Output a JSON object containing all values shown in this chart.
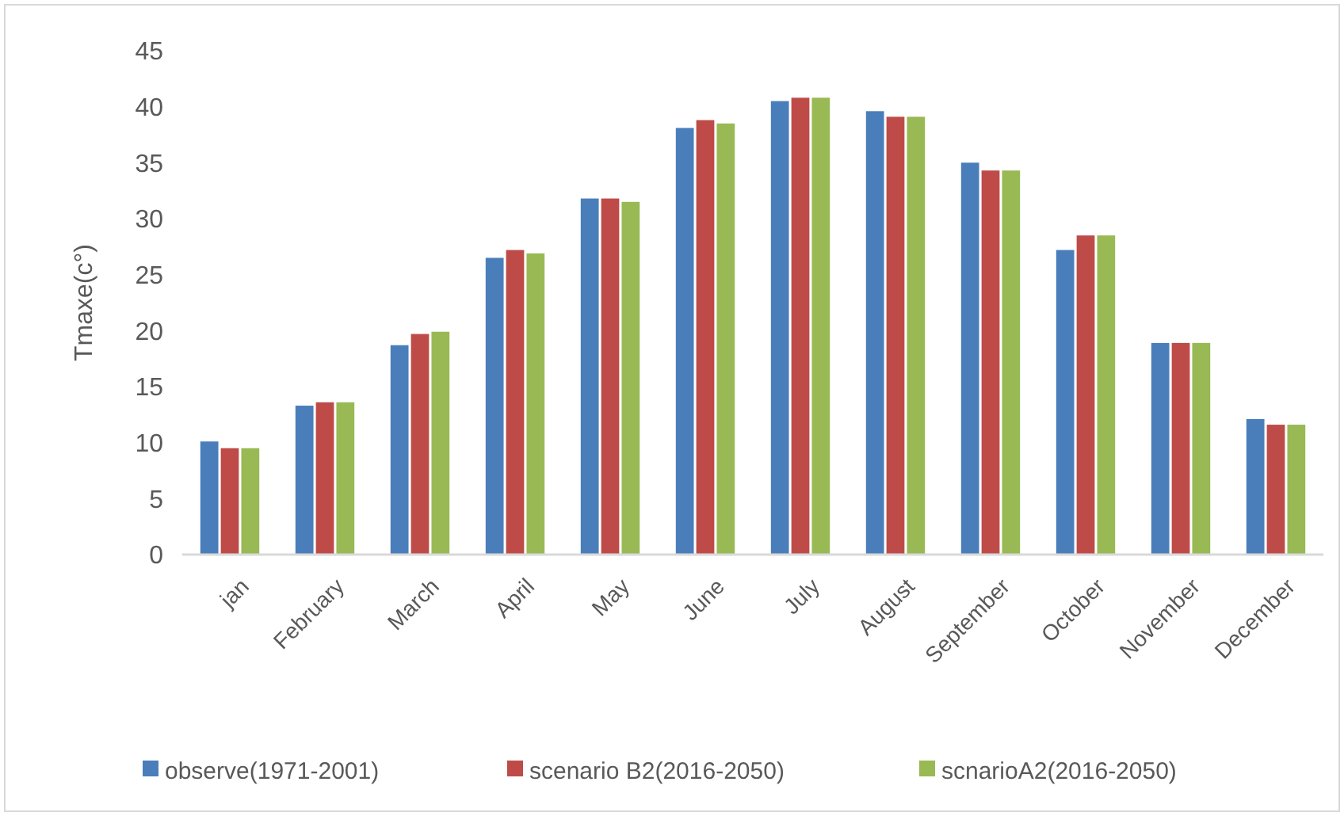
{
  "chart_data": {
    "type": "bar",
    "ylabel": "Tmaxe(c°)",
    "categories": [
      "jan",
      "February",
      "March",
      "April",
      "May",
      "June",
      "July",
      "August",
      "September",
      "October",
      "November",
      "December"
    ],
    "series": [
      {
        "name": "observe(1971-2001)",
        "color": "#4a7ebb",
        "values": [
          10.1,
          13.3,
          18.7,
          26.5,
          31.8,
          38.1,
          40.5,
          39.6,
          35.0,
          27.2,
          18.9,
          12.1
        ]
      },
      {
        "name": "scenario B2(2016-2050)",
        "color": "#be4b48",
        "values": [
          9.5,
          13.6,
          19.7,
          27.2,
          31.8,
          38.8,
          40.8,
          39.1,
          34.3,
          28.5,
          18.9,
          11.6
        ]
      },
      {
        "name": "scnarioA2(2016-2050)",
        "color": "#98b954",
        "values": [
          9.5,
          13.6,
          19.9,
          26.9,
          31.5,
          38.5,
          40.8,
          39.1,
          34.3,
          28.5,
          18.9,
          11.6
        ]
      }
    ],
    "ylim": [
      0,
      45
    ],
    "yticks": [
      0,
      5,
      10,
      15,
      20,
      25,
      30,
      35,
      40,
      45
    ],
    "grid": false,
    "legend": "bottom"
  }
}
